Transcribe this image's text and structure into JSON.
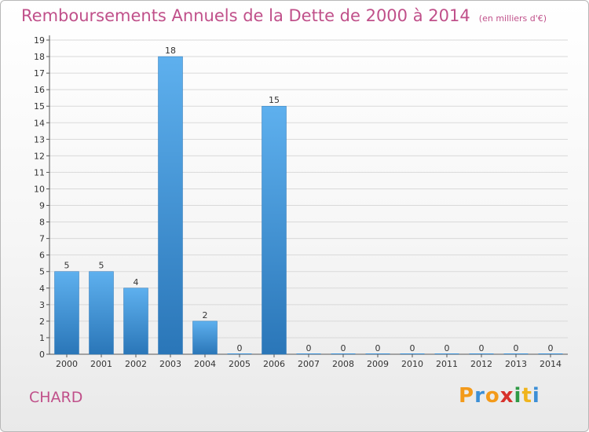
{
  "header": {
    "title": "Remboursements Annuels de la Dette de 2000 à 2014",
    "unit": "(en milliers d'€)"
  },
  "commune": "CHARD",
  "logo": {
    "letters": [
      "P",
      "r",
      "o",
      "x",
      "i",
      "t",
      "i"
    ],
    "colors": [
      "#f39a1a",
      "#3c8fd6",
      "#f39a1a",
      "#d7322c",
      "#2f9a45",
      "#f0b41c",
      "#3c8fd6"
    ]
  },
  "colors": {
    "bar": "#3a8fd6",
    "bar_light": "#5eb0ee",
    "bar_dark": "#2a76b8",
    "grid": "#d9d9d9",
    "title": "#c0508a"
  },
  "chart_data": {
    "type": "bar",
    "categories": [
      "2000",
      "2001",
      "2002",
      "2003",
      "2004",
      "2005",
      "2006",
      "2007",
      "2008",
      "2009",
      "2010",
      "2011",
      "2012",
      "2013",
      "2014"
    ],
    "values": [
      5,
      5,
      4,
      18,
      2,
      0,
      15,
      0,
      0,
      0,
      0,
      0,
      0,
      0,
      0
    ],
    "title": "Remboursements Annuels de la Dette de 2000 à 2014",
    "ylim": [
      0,
      19
    ],
    "yticks": [
      0,
      1,
      2,
      3,
      4,
      5,
      6,
      7,
      8,
      9,
      10,
      11,
      12,
      13,
      14,
      15,
      16,
      17,
      18,
      19
    ],
    "grid": true
  }
}
